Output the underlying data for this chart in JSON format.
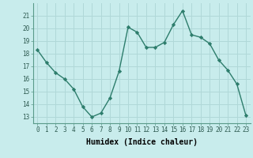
{
  "x": [
    0,
    1,
    2,
    3,
    4,
    5,
    6,
    7,
    8,
    9,
    10,
    11,
    12,
    13,
    14,
    15,
    16,
    17,
    18,
    19,
    20,
    21,
    22,
    23
  ],
  "y": [
    18.3,
    17.3,
    16.5,
    16.0,
    15.2,
    13.8,
    13.0,
    13.3,
    14.5,
    16.6,
    20.1,
    19.7,
    18.5,
    18.5,
    18.9,
    20.3,
    21.4,
    19.5,
    19.3,
    18.8,
    17.5,
    16.7,
    15.6,
    13.1
  ],
  "line_color": "#2d7d6c",
  "marker": "D",
  "marker_size": 2.2,
  "bg_color": "#c8ecec",
  "grid_color": "#b0d8d8",
  "xlabel": "Humidex (Indice chaleur)",
  "ylim": [
    12.5,
    22.0
  ],
  "xlim": [
    -0.5,
    23.5
  ],
  "yticks": [
    13,
    14,
    15,
    16,
    17,
    18,
    19,
    20,
    21
  ],
  "xticks": [
    0,
    1,
    2,
    3,
    4,
    5,
    6,
    7,
    8,
    9,
    10,
    11,
    12,
    13,
    14,
    15,
    16,
    17,
    18,
    19,
    20,
    21,
    22,
    23
  ],
  "tick_fontsize": 5.5,
  "xlabel_fontsize": 7.0,
  "line_width": 1.0
}
